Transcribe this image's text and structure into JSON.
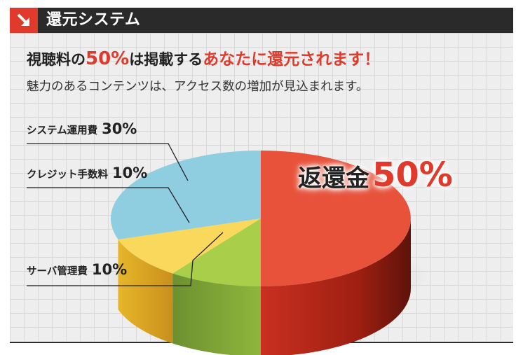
{
  "header": {
    "title": "還元システム",
    "accent_color": "#e03a2c",
    "icon": "arrow-down-right-icon"
  },
  "headline": {
    "part1": "視聴料の",
    "percent": "50%",
    "part2": "は掲載する",
    "highlight": "あなたに還元されます！"
  },
  "subline": "魅力のあるコンテンツは、アクセス数の増加が見込まれます。",
  "chart_data": {
    "type": "pie",
    "categories": [
      "返還金",
      "サーバ管理費",
      "クレジット手数料",
      "システム運用費"
    ],
    "values": [
      50,
      10,
      10,
      30
    ],
    "labels": [
      "返還金50%",
      "サーバ管理費 10%",
      "クレジット手数料 10%",
      "システム運用費 30%"
    ],
    "value_labels": [
      "50%",
      "10%",
      "10%",
      "30%"
    ],
    "colors": [
      "#e8513a",
      "#a9cf4a",
      "#f9d85c",
      "#8fcde0"
    ]
  }
}
